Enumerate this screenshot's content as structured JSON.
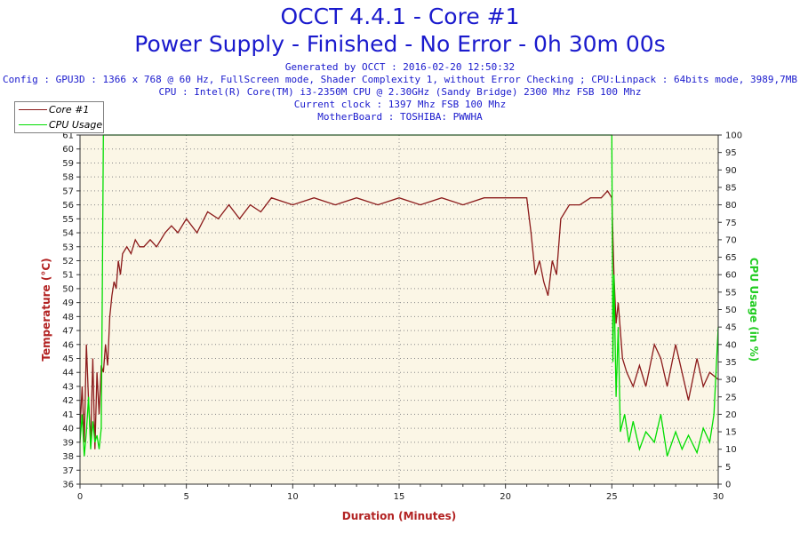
{
  "header": {
    "title_line1": "OCCT 4.4.1 - Core #1",
    "title_line2": "Power Supply - Finished - No Error - 0h 30m 00s",
    "generated": "Generated by OCCT : 2016-02-20 12:50:32",
    "config": "Config : GPU3D : 1366 x 768 @ 60 Hz, FullScreen mode, Shader Complexity 1, without Error Checking ; CPU:Linpack : 64bits mode, 3989,7MB",
    "cpu": "CPU : Intel(R) Core(TM) i3-2350M CPU @ 2.30GHz (Sandy Bridge) 2300 Mhz FSB 100 Mhz",
    "clock": "Current clock : 1397 Mhz FSB 100 Mhz",
    "motherboard": "MotherBoard : TOSHIBA: PWWHA"
  },
  "colors": {
    "temperature": "#8b1a1a",
    "cpu_usage": "#00dd00",
    "plot_bg": "#fbf6e6",
    "title": "#1a1acd",
    "grid": "#888888"
  },
  "chart_data": {
    "type": "line",
    "xlabel": "Duration (Minutes)",
    "ylabel": "Temperature (°C)",
    "y2label": "CPU Usage (in %)",
    "xlim": [
      0,
      30
    ],
    "ylim": [
      36,
      61
    ],
    "y2lim": [
      0,
      100
    ],
    "x_ticks": [
      0,
      5,
      10,
      15,
      20,
      25,
      30
    ],
    "y_ticks": [
      36,
      37,
      38,
      39,
      40,
      41,
      42,
      43,
      44,
      45,
      46,
      47,
      48,
      49,
      50,
      51,
      52,
      53,
      54,
      55,
      56,
      57,
      58,
      59,
      60,
      61
    ],
    "y2_ticks": [
      0,
      5,
      10,
      15,
      20,
      25,
      30,
      35,
      40,
      45,
      50,
      55,
      60,
      65,
      70,
      75,
      80,
      85,
      90,
      95,
      100
    ],
    "legend": [
      "Core #1",
      "CPU Usage"
    ],
    "legend_position": "top-left",
    "grid": true,
    "series": [
      {
        "name": "Core #1",
        "axis": "left",
        "x": [
          0.0,
          0.1,
          0.2,
          0.3,
          0.4,
          0.5,
          0.6,
          0.7,
          0.8,
          0.9,
          1.0,
          1.1,
          1.2,
          1.3,
          1.4,
          1.5,
          1.6,
          1.7,
          1.8,
          1.9,
          2.0,
          2.2,
          2.4,
          2.6,
          2.8,
          3.0,
          3.3,
          3.6,
          4.0,
          4.3,
          4.6,
          5.0,
          5.5,
          6.0,
          6.5,
          7.0,
          7.5,
          8.0,
          8.5,
          9.0,
          10.0,
          11.0,
          12.0,
          13.0,
          14.0,
          15.0,
          16.0,
          17.0,
          18.0,
          19.0,
          20.0,
          20.5,
          21.0,
          21.2,
          21.4,
          21.6,
          21.8,
          22.0,
          22.2,
          22.4,
          22.6,
          22.8,
          23.0,
          23.5,
          24.0,
          24.5,
          24.8,
          25.0,
          25.1,
          25.2,
          25.3,
          25.5,
          25.7,
          26.0,
          26.3,
          26.6,
          27.0,
          27.3,
          27.6,
          28.0,
          28.3,
          28.6,
          29.0,
          29.3,
          29.6,
          30.0
        ],
        "y": [
          40,
          43,
          39,
          46,
          42,
          39,
          45,
          38.5,
          44,
          41,
          44.5,
          44,
          46,
          44.5,
          48,
          49.5,
          50.5,
          50,
          52,
          51,
          52.5,
          53,
          52.5,
          53.5,
          53,
          53,
          53.5,
          53,
          54,
          54.5,
          54,
          55,
          54,
          55.5,
          55,
          56,
          55,
          56,
          55.5,
          56.5,
          56,
          56.5,
          56,
          56.5,
          56,
          56.5,
          56,
          56.5,
          56,
          56.5,
          56.5,
          56.5,
          56.5,
          54,
          51,
          52,
          50.5,
          49.5,
          52,
          51,
          55,
          55.5,
          56,
          56,
          56.5,
          56.5,
          57,
          56.5,
          51,
          47.5,
          49,
          45,
          44,
          43,
          44.5,
          43,
          46,
          45,
          43,
          46,
          44,
          42,
          45,
          43,
          44,
          43.5
        ]
      },
      {
        "name": "CPU Usage",
        "axis": "right",
        "x": [
          0.0,
          0.1,
          0.2,
          0.3,
          0.4,
          0.5,
          0.6,
          0.7,
          0.8,
          0.9,
          1.0,
          1.05,
          1.1,
          1.2,
          5.0,
          10.0,
          15.0,
          20.0,
          24.9,
          25.0,
          25.05,
          25.1,
          25.2,
          25.3,
          25.4,
          25.6,
          25.8,
          26.0,
          26.3,
          26.6,
          27.0,
          27.3,
          27.6,
          28.0,
          28.3,
          28.6,
          29.0,
          29.3,
          29.6,
          29.8,
          30.0
        ],
        "y": [
          12,
          20,
          8,
          15,
          25,
          10,
          18,
          12,
          14,
          10,
          16,
          55,
          100,
          100,
          100,
          100,
          100,
          100,
          100,
          100,
          35,
          60,
          25,
          45,
          15,
          20,
          12,
          18,
          10,
          15,
          12,
          20,
          8,
          15,
          10,
          14,
          9,
          16,
          12,
          20,
          45
        ]
      }
    ]
  }
}
